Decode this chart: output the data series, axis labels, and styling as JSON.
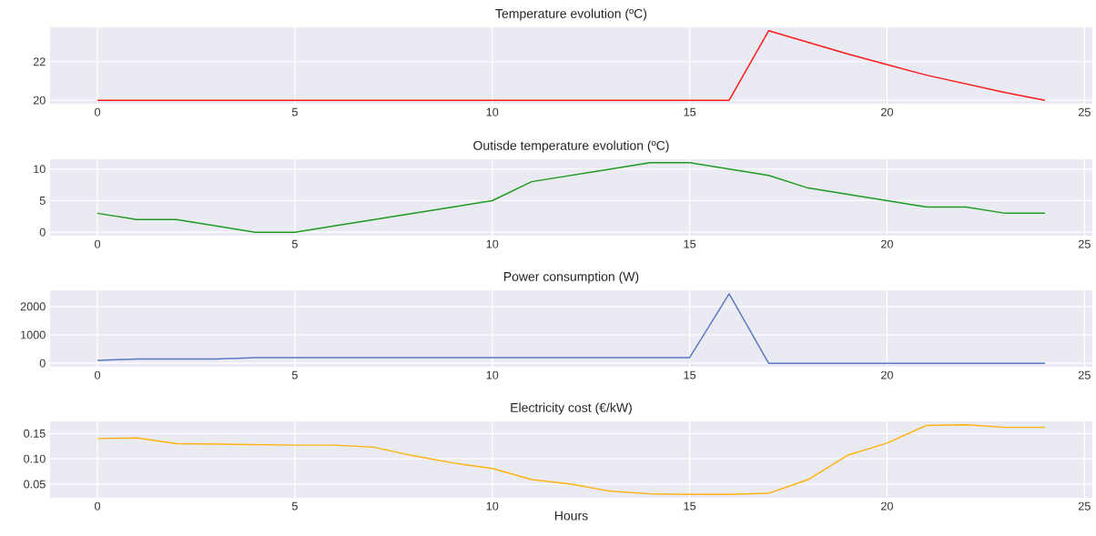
{
  "chart_data": [
    {
      "type": "line",
      "title": "Temperature evolution (ºC)",
      "x": [
        0,
        1,
        2,
        3,
        4,
        5,
        6,
        7,
        8,
        9,
        10,
        11,
        12,
        13,
        14,
        15,
        16,
        17,
        18,
        19,
        20,
        21,
        22,
        23,
        24
      ],
      "values": [
        20,
        20,
        20,
        20,
        20,
        20,
        20,
        20,
        20,
        20,
        20,
        20,
        20,
        20,
        20,
        20,
        20,
        23.6,
        23.0,
        22.4,
        21.85,
        21.3,
        20.85,
        20.4,
        20.0
      ],
      "color": "#ff1a1a",
      "xlim": [
        -1.2,
        25.2
      ],
      "ylim": [
        19.82,
        23.78
      ],
      "xticks": [
        0,
        5,
        10,
        15,
        20,
        25
      ],
      "yticks": [
        20,
        22
      ],
      "grid": true
    },
    {
      "type": "line",
      "title": "Outisde temperature evolution (ºC)",
      "x": [
        0,
        1,
        2,
        3,
        4,
        5,
        6,
        7,
        8,
        9,
        10,
        11,
        12,
        13,
        14,
        15,
        16,
        17,
        18,
        19,
        20,
        21,
        22,
        23,
        24
      ],
      "values": [
        3,
        2,
        2,
        1,
        0,
        0,
        1,
        2,
        3,
        4,
        5,
        8,
        9,
        10,
        11,
        11,
        10,
        9,
        7,
        6,
        5,
        4,
        4,
        3,
        3
      ],
      "color": "#1f9a1f",
      "xlim": [
        -1.2,
        25.2
      ],
      "ylim": [
        -0.55,
        11.55
      ],
      "xticks": [
        0,
        5,
        10,
        15,
        20,
        25
      ],
      "yticks": [
        0,
        5,
        10
      ],
      "grid": true
    },
    {
      "type": "line",
      "title": "Power consumption (W)",
      "x": [
        0,
        1,
        2,
        3,
        4,
        5,
        6,
        7,
        8,
        9,
        10,
        11,
        12,
        13,
        14,
        15,
        16,
        17,
        18,
        19,
        20,
        21,
        22,
        23,
        24
      ],
      "values": [
        100,
        150,
        150,
        150,
        200,
        200,
        200,
        200,
        200,
        200,
        200,
        200,
        200,
        200,
        200,
        200,
        2450,
        0,
        0,
        0,
        0,
        0,
        0,
        0,
        0
      ],
      "color": "#5a78c0",
      "xlim": [
        -1.2,
        25.2
      ],
      "ylim": [
        -122.5,
        2572.5
      ],
      "xticks": [
        0,
        5,
        10,
        15,
        20,
        25
      ],
      "yticks": [
        0,
        1000,
        2000
      ],
      "grid": true
    },
    {
      "type": "line",
      "title": "Electricity cost (€/kW)",
      "xlabel": "Hours",
      "x": [
        0,
        1,
        2,
        3,
        4,
        5,
        6,
        7,
        8,
        9,
        10,
        11,
        12,
        13,
        14,
        15,
        16,
        17,
        18,
        19,
        20,
        21,
        22,
        23,
        24
      ],
      "values": [
        0.14,
        0.141,
        0.13,
        0.129,
        0.128,
        0.127,
        0.127,
        0.123,
        0.106,
        0.092,
        0.081,
        0.059,
        0.05,
        0.036,
        0.031,
        0.03,
        0.03,
        0.032,
        0.059,
        0.107,
        0.131,
        0.166,
        0.167,
        0.162,
        0.162
      ],
      "color": "#ffb20f",
      "xlim": [
        -1.2,
        25.2
      ],
      "ylim": [
        0.0232,
        0.1739
      ],
      "xticks": [
        0,
        5,
        10,
        15,
        20,
        25
      ],
      "yticks": [
        {
          "value": 0.05,
          "label": "0.05"
        },
        {
          "value": 0.1,
          "label": "0.10"
        },
        {
          "value": 0.15,
          "label": "0.15"
        }
      ],
      "grid": true
    }
  ]
}
